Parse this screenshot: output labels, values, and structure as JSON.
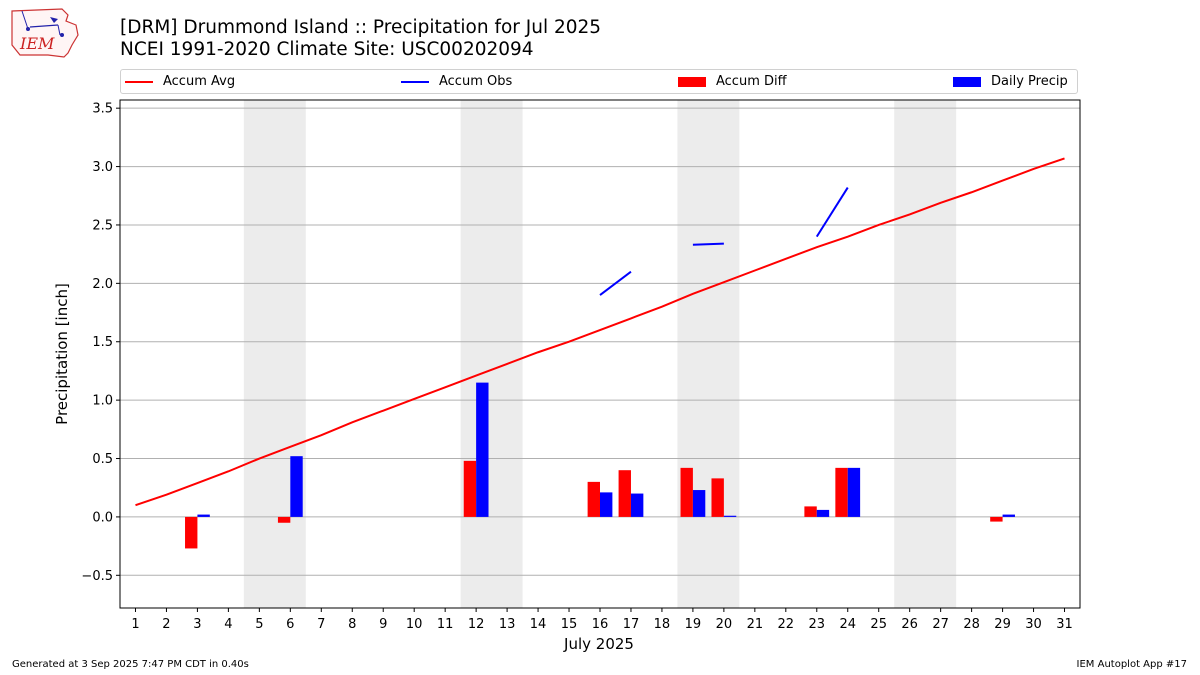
{
  "header": {
    "title_line1": "[DRM] Drummond Island :: Precipitation for Jul 2025",
    "title_line2": "NCEI 1991-2020 Climate Site: USC00202094"
  },
  "logo": {
    "text": "IEM"
  },
  "legend": {
    "placement": "top, horizontal",
    "items": [
      {
        "label": "Accum Avg",
        "kind": "line",
        "color": "#ff0000"
      },
      {
        "label": "Accum Obs",
        "kind": "line",
        "color": "#0000ff"
      },
      {
        "label": "Accum Diff",
        "kind": "bar",
        "color": "#ff0000"
      },
      {
        "label": "Daily Precip",
        "kind": "bar",
        "color": "#0000ff"
      }
    ]
  },
  "footer": {
    "left": "Generated at 3 Sep 2025 7:47 PM CDT in 0.40s",
    "right": "IEM Autoplot App #17"
  },
  "chart_data": {
    "type": "bar",
    "xlabel": "July 2025",
    "ylabel": "Precipitation [inch]",
    "xlim": [
      0.5,
      31.5
    ],
    "ylim": [
      -0.78,
      3.57
    ],
    "yticks": [
      -0.5,
      0.0,
      0.5,
      1.0,
      1.5,
      2.0,
      2.5,
      3.0,
      3.5
    ],
    "ytick_labels": [
      "−0.5",
      "0.0",
      "0.5",
      "1.0",
      "1.5",
      "2.0",
      "2.5",
      "3.0",
      "3.5"
    ],
    "grid": "horizontal",
    "days": [
      1,
      2,
      3,
      4,
      5,
      6,
      7,
      8,
      9,
      10,
      11,
      12,
      13,
      14,
      15,
      16,
      17,
      18,
      19,
      20,
      21,
      22,
      23,
      24,
      25,
      26,
      27,
      28,
      29,
      30,
      31
    ],
    "weekend_shading": [
      [
        5,
        6
      ],
      [
        12,
        13
      ],
      [
        19,
        20
      ],
      [
        26,
        27
      ]
    ],
    "accum_avg": [
      0.1,
      0.19,
      0.29,
      0.39,
      0.5,
      0.6,
      0.7,
      0.81,
      0.91,
      1.01,
      1.11,
      1.21,
      1.31,
      1.41,
      1.5,
      1.6,
      1.7,
      1.8,
      1.91,
      2.01,
      2.11,
      2.21,
      2.31,
      2.4,
      2.5,
      2.59,
      2.69,
      2.78,
      2.88,
      2.98,
      3.07
    ],
    "accum_obs_segments": [
      {
        "x": [
          16,
          17
        ],
        "y": [
          1.9,
          2.1
        ]
      },
      {
        "x": [
          19,
          20
        ],
        "y": [
          2.33,
          2.34
        ]
      },
      {
        "x": [
          23,
          24
        ],
        "y": [
          2.4,
          2.82
        ]
      }
    ],
    "accum_diff": [
      {
        "day": 3,
        "value": -0.27
      },
      {
        "day": 6,
        "value": -0.05
      },
      {
        "day": 12,
        "value": 0.48
      },
      {
        "day": 16,
        "value": 0.3
      },
      {
        "day": 17,
        "value": 0.4
      },
      {
        "day": 19,
        "value": 0.42
      },
      {
        "day": 20,
        "value": 0.33
      },
      {
        "day": 23,
        "value": 0.09
      },
      {
        "day": 24,
        "value": 0.42
      },
      {
        "day": 29,
        "value": -0.04
      }
    ],
    "daily_precip": [
      {
        "day": 3,
        "value": 0.02
      },
      {
        "day": 6,
        "value": 0.52
      },
      {
        "day": 12,
        "value": 1.15
      },
      {
        "day": 16,
        "value": 0.21
      },
      {
        "day": 17,
        "value": 0.2
      },
      {
        "day": 19,
        "value": 0.23
      },
      {
        "day": 20,
        "value": 0.01
      },
      {
        "day": 23,
        "value": 0.06
      },
      {
        "day": 24,
        "value": 0.42
      },
      {
        "day": 29,
        "value": 0.02
      }
    ]
  }
}
